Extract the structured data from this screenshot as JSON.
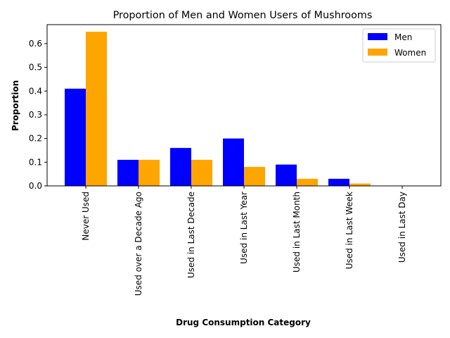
{
  "chart_data": {
    "type": "bar",
    "title": "Proportion of Men and Women Users of Mushrooms",
    "xlabel": "Drug Consumption Category",
    "ylabel": "Proportion",
    "categories": [
      "Never Used",
      "Used over a Decade Ago",
      "Used in Last Decade",
      "Used in Last Year",
      "Used in Last Month",
      "Used in Last Week",
      "Used in Last Day"
    ],
    "series": [
      {
        "name": "Men",
        "color": "#0000ff",
        "values": [
          0.41,
          0.11,
          0.16,
          0.2,
          0.09,
          0.03,
          0.0
        ]
      },
      {
        "name": "Women",
        "color": "#ffa500",
        "values": [
          0.65,
          0.11,
          0.11,
          0.08,
          0.03,
          0.01,
          0.0
        ]
      }
    ],
    "ylim": [
      0,
      0.68
    ],
    "yticks": [
      "0.0",
      "0.1",
      "0.2",
      "0.3",
      "0.4",
      "0.5",
      "0.6"
    ],
    "legend": "top-right",
    "grid": false
  }
}
